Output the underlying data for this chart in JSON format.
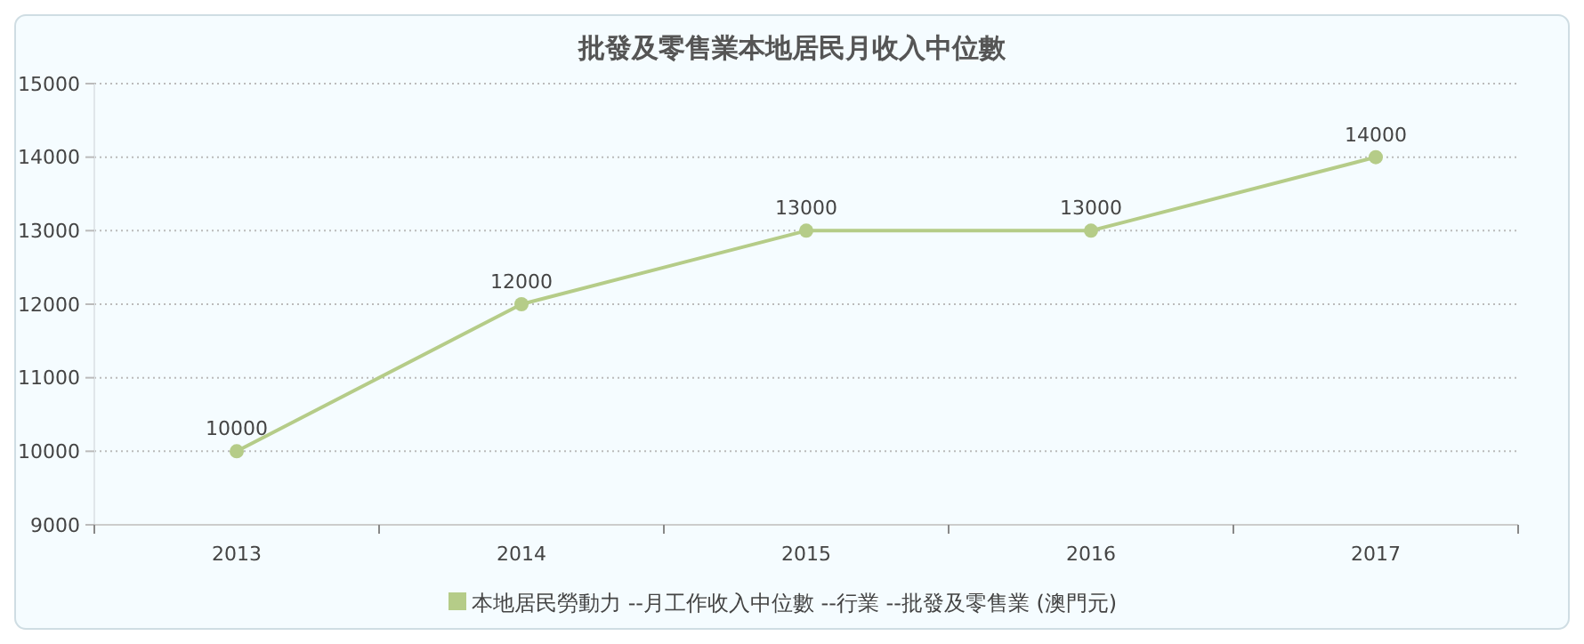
{
  "chart_data": {
    "type": "line",
    "title": "批發及零售業本地居民月收入中位數",
    "categories": [
      "2013",
      "2014",
      "2015",
      "2016",
      "2017"
    ],
    "series": [
      {
        "name": "本地居民勞動力 --月工作收入中位數 --行業 --批發及零售業 (澳門元)",
        "color": "#b5cc88",
        "values": [
          10000,
          12000,
          13000,
          13000,
          14000
        ]
      }
    ],
    "ylim": [
      9000,
      15000
    ],
    "yticks": [
      9000,
      10000,
      11000,
      12000,
      13000,
      14000,
      15000
    ],
    "grid": "y",
    "legend": "bottom",
    "data_labels": true,
    "marker": "circle",
    "line_style": "solid"
  }
}
